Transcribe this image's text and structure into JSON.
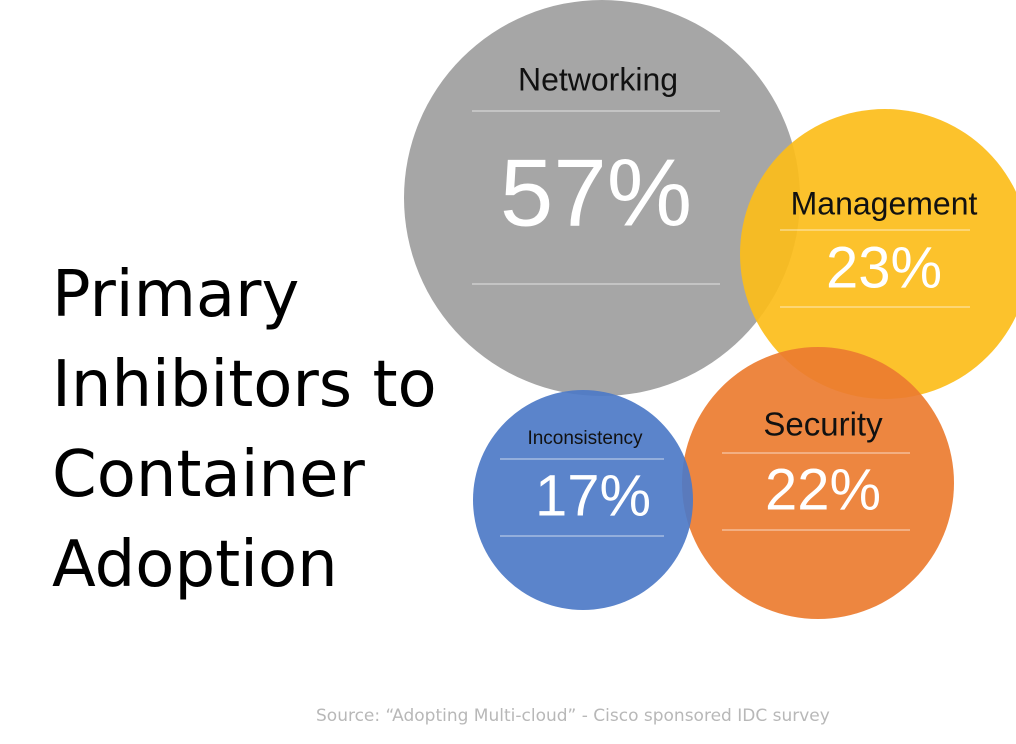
{
  "slide": {
    "title_lines": [
      "Primary",
      "Inhibitors to",
      "Container",
      "Adoption"
    ],
    "source": "Source: “Adopting Multi-cloud” - Cisco sponsored IDC survey"
  },
  "chart_data": {
    "type": "bubble",
    "title": "Primary Inhibitors to Container Adoption",
    "unit": "%",
    "series": [
      {
        "name": "Networking",
        "value": 57,
        "label": "57%",
        "color": "#a6a6a6"
      },
      {
        "name": "Management",
        "value": 23,
        "label": "23%",
        "color": "#fcbd1a"
      },
      {
        "name": "Security",
        "value": 22,
        "label": "22%",
        "color": "#ec7c30"
      },
      {
        "name": "Inconsistency",
        "value": 17,
        "label": "17%",
        "color": "#4d7ac7"
      }
    ]
  }
}
